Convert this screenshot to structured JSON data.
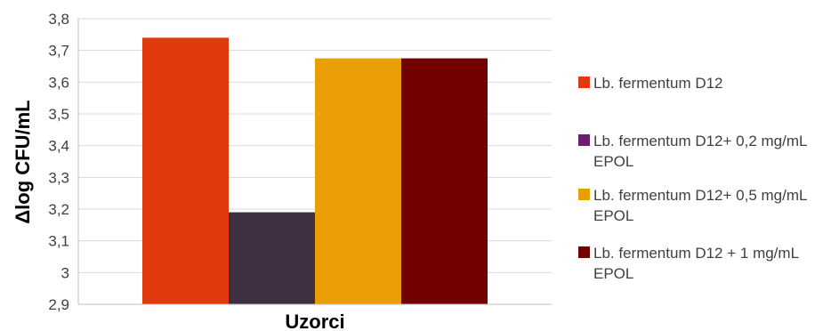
{
  "chart_data": {
    "type": "bar",
    "title": "",
    "xlabel": "Uzorci",
    "ylabel": "Δlog CFU/mL",
    "ylim": [
      2.9,
      3.8
    ],
    "yticks": [
      "2,9",
      "3",
      "3,1",
      "3,2",
      "3,3",
      "3,4",
      "3,5",
      "3,6",
      "3,7",
      "3,8"
    ],
    "grid": true,
    "legend_position": "right",
    "series": [
      {
        "name": "Lb. fermentum D12",
        "value": 3.74,
        "color": "#E03A0C"
      },
      {
        "name": "Lb. fermentum D12+ 0,2 mg/mL EPOL",
        "value": 3.19,
        "color": "#3E3040",
        "legend_color": "#6E1C6C"
      },
      {
        "name": "Lb. fermentum D12+ 0,5 mg/mL EPOL",
        "value": 3.675,
        "color": "#E89E04"
      },
      {
        "name": "Lb. fermentum D12 + 1 mg/mL EPOL",
        "value": 3.675,
        "color": "#720000"
      }
    ]
  }
}
